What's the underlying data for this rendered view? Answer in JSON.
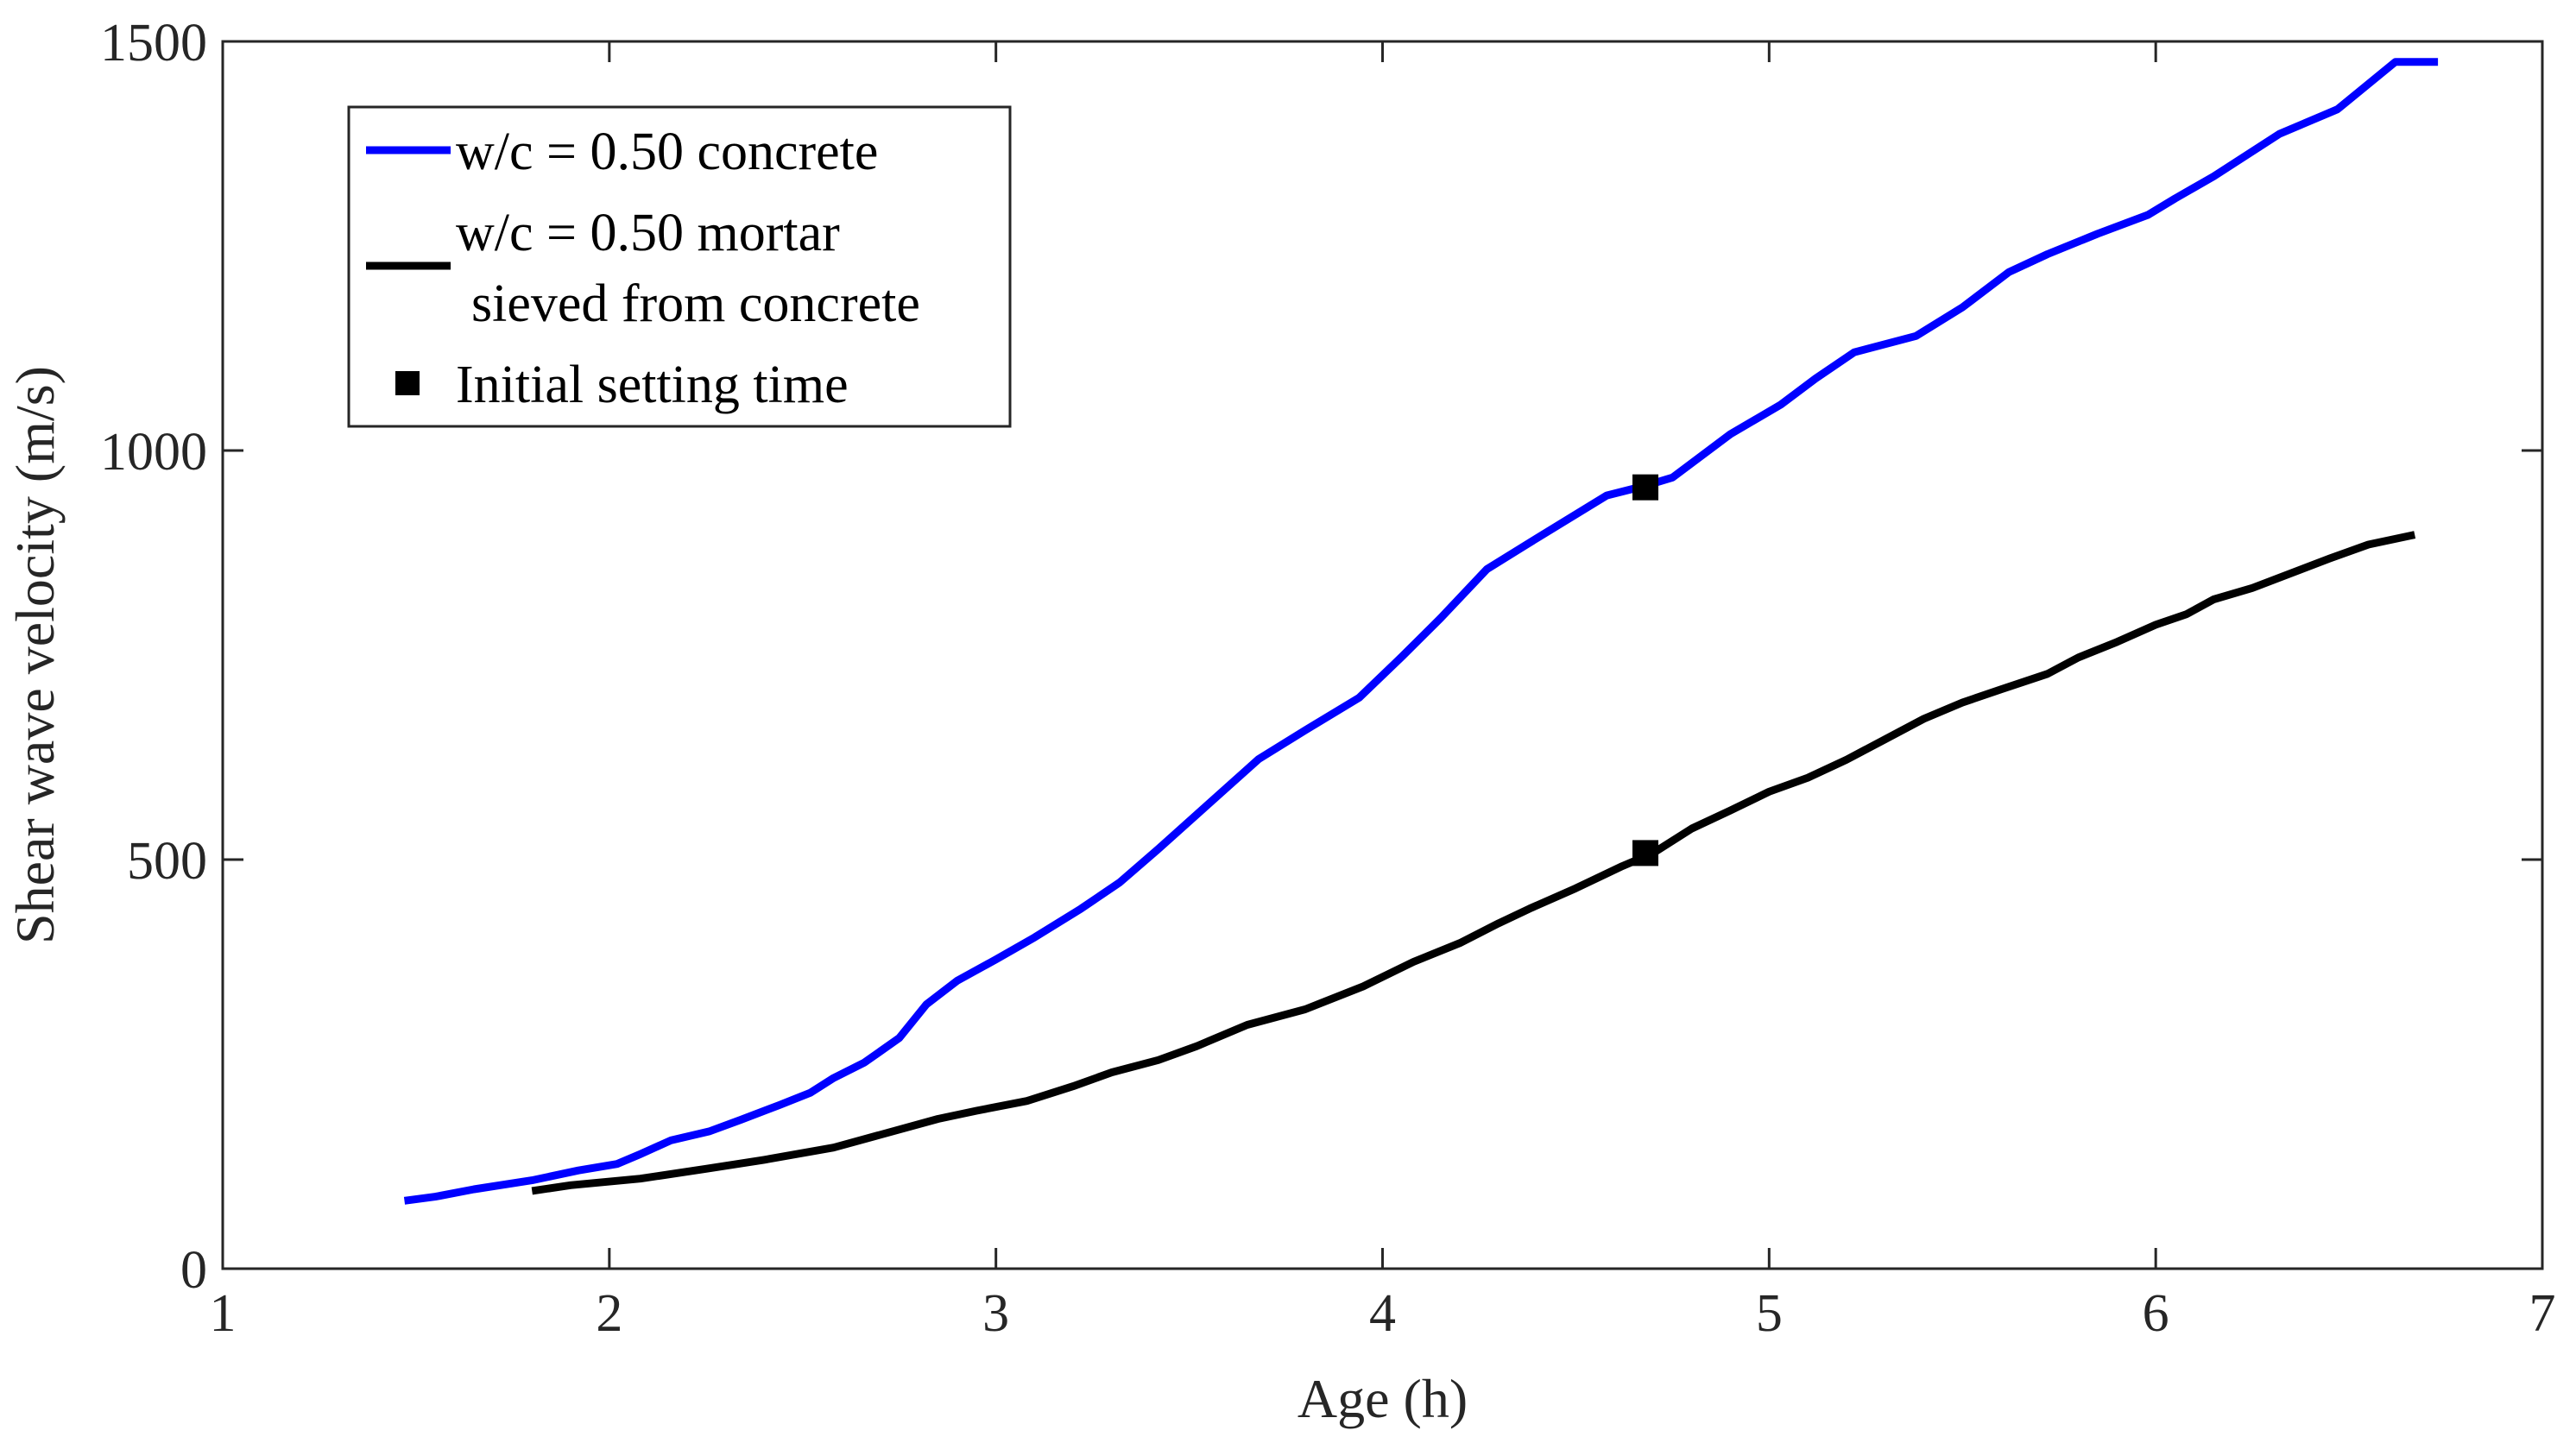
{
  "chart_data": {
    "type": "line",
    "title": "",
    "xlabel": "Age (h)",
    "ylabel": "Shear wave velocity (m/s)",
    "xlim": [
      1,
      7
    ],
    "ylim": [
      0,
      1500
    ],
    "xticks": [
      1,
      2,
      3,
      4,
      5,
      6,
      7
    ],
    "yticks": [
      0,
      500,
      1000,
      1500
    ],
    "grid": false,
    "legend_position": "top-left",
    "series": [
      {
        "name": "w/c = 0.50 concrete",
        "color": "#0000ff",
        "x": [
          1.47,
          1.55,
          1.65,
          1.8,
          1.92,
          2.02,
          2.08,
          2.16,
          2.26,
          2.34,
          2.44,
          2.52,
          2.58,
          2.66,
          2.75,
          2.82,
          2.9,
          3.0,
          3.1,
          3.22,
          3.32,
          3.42,
          3.55,
          3.68,
          3.8,
          3.94,
          4.05,
          4.15,
          4.27,
          4.4,
          4.58,
          4.68,
          4.75,
          4.9,
          5.03,
          5.12,
          5.22,
          5.38,
          5.5,
          5.62,
          5.72,
          5.85,
          5.98,
          6.05,
          6.15,
          6.32,
          6.47,
          6.62,
          6.73
        ],
        "y": [
          83,
          88,
          97,
          108,
          120,
          128,
          140,
          157,
          168,
          182,
          200,
          215,
          233,
          252,
          282,
          323,
          352,
          378,
          405,
          440,
          472,
          513,
          568,
          623,
          658,
          698,
          748,
          795,
          855,
          893,
          945,
          957,
          967,
          1020,
          1056,
          1088,
          1120,
          1140,
          1175,
          1218,
          1240,
          1265,
          1288,
          1308,
          1335,
          1387,
          1417,
          1475,
          1475
        ]
      },
      {
        "name": "w/c = 0.50 mortar\nsieved from concrete",
        "label_lines": [
          "w/c = 0.50 mortar",
          "sieved from concrete"
        ],
        "color": "#000000",
        "x": [
          1.8,
          1.9,
          2.08,
          2.25,
          2.4,
          2.58,
          2.75,
          2.85,
          2.95,
          3.08,
          3.2,
          3.3,
          3.42,
          3.52,
          3.65,
          3.8,
          3.95,
          4.08,
          4.2,
          4.3,
          4.38,
          4.5,
          4.62,
          4.7,
          4.8,
          4.9,
          5.0,
          5.1,
          5.2,
          5.3,
          5.4,
          5.5,
          5.6,
          5.72,
          5.8,
          5.9,
          6.0,
          6.08,
          6.15,
          6.25,
          6.35,
          6.45,
          6.55,
          6.67
        ],
        "y": [
          95,
          102,
          110,
          122,
          133,
          148,
          170,
          183,
          193,
          205,
          223,
          240,
          255,
          272,
          298,
          317,
          345,
          375,
          398,
          422,
          440,
          465,
          492,
          508,
          538,
          560,
          583,
          600,
          622,
          647,
          672,
          692,
          708,
          727,
          747,
          766,
          787,
          800,
          818,
          832,
          850,
          868,
          885,
          897
        ]
      }
    ],
    "markers": {
      "name": "Initial setting time",
      "symbol": "square",
      "color": "#000000",
      "points": [
        {
          "x": 4.68,
          "y": 955
        },
        {
          "x": 4.68,
          "y": 508
        }
      ]
    }
  }
}
